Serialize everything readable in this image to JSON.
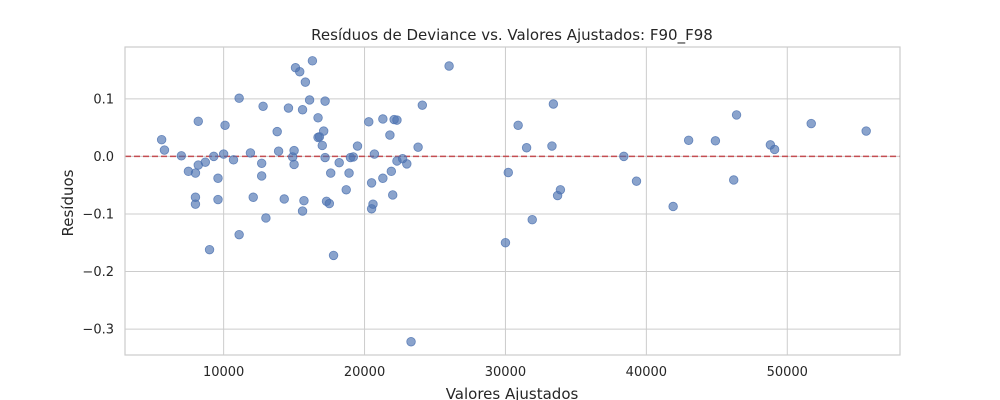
{
  "chart_data": {
    "type": "scatter",
    "title": "Resíduos de Deviance vs. Valores Ajustados: F90_F98",
    "xlabel": "Valores Ajustados",
    "ylabel": "Resíduos",
    "xlim": [
      3000,
      58000
    ],
    "ylim": [
      -0.345,
      0.19
    ],
    "xticks": [
      10000,
      20000,
      30000,
      40000,
      50000
    ],
    "xtick_labels": [
      "10000",
      "20000",
      "30000",
      "40000",
      "50000"
    ],
    "yticks": [
      -0.3,
      -0.2,
      -0.1,
      0.0,
      0.1
    ],
    "ytick_labels": [
      "−0.3",
      "−0.2",
      "−0.1",
      "0.0",
      "0.1"
    ],
    "grid": true,
    "reference_line": {
      "y": 0.0,
      "style": "dashed",
      "color": "#c44e52"
    },
    "point_color": "#4c72b0",
    "points": [
      [
        5600,
        0.029
      ],
      [
        5800,
        0.011
      ],
      [
        7000,
        0.001
      ],
      [
        7500,
        -0.026
      ],
      [
        8000,
        -0.029
      ],
      [
        8000,
        -0.071
      ],
      [
        8000,
        -0.083
      ],
      [
        8200,
        0.061
      ],
      [
        8200,
        -0.015
      ],
      [
        8700,
        -0.01
      ],
      [
        9000,
        -0.162
      ],
      [
        9300,
        0.0
      ],
      [
        9600,
        -0.038
      ],
      [
        9600,
        -0.075
      ],
      [
        10000,
        0.004
      ],
      [
        10100,
        0.054
      ],
      [
        10700,
        -0.006
      ],
      [
        11100,
        0.101
      ],
      [
        11100,
        -0.136
      ],
      [
        11900,
        0.006
      ],
      [
        12100,
        -0.071
      ],
      [
        12700,
        -0.012
      ],
      [
        12700,
        -0.034
      ],
      [
        12800,
        0.087
      ],
      [
        13000,
        -0.107
      ],
      [
        13800,
        0.043
      ],
      [
        13900,
        0.009
      ],
      [
        14300,
        -0.074
      ],
      [
        14600,
        0.084
      ],
      [
        14900,
        -0.001
      ],
      [
        15000,
        0.01
      ],
      [
        15000,
        -0.014
      ],
      [
        15100,
        0.154
      ],
      [
        15400,
        0.147
      ],
      [
        15600,
        -0.095
      ],
      [
        15600,
        0.081
      ],
      [
        15700,
        -0.077
      ],
      [
        15800,
        0.129
      ],
      [
        16100,
        0.098
      ],
      [
        16300,
        0.166
      ],
      [
        16700,
        0.033
      ],
      [
        16700,
        0.067
      ],
      [
        16800,
        0.034
      ],
      [
        17000,
        0.019
      ],
      [
        17100,
        0.044
      ],
      [
        17200,
        -0.002
      ],
      [
        17200,
        0.096
      ],
      [
        17300,
        -0.078
      ],
      [
        17500,
        -0.082
      ],
      [
        17600,
        -0.029
      ],
      [
        17800,
        -0.172
      ],
      [
        18200,
        -0.011
      ],
      [
        18700,
        -0.058
      ],
      [
        18900,
        -0.029
      ],
      [
        19000,
        -0.002
      ],
      [
        19200,
        -0.001
      ],
      [
        19500,
        0.018
      ],
      [
        20300,
        0.06
      ],
      [
        20500,
        -0.046
      ],
      [
        20500,
        -0.091
      ],
      [
        20600,
        -0.083
      ],
      [
        20700,
        0.004
      ],
      [
        21300,
        0.065
      ],
      [
        21300,
        -0.038
      ],
      [
        21800,
        0.037
      ],
      [
        21900,
        -0.026
      ],
      [
        22000,
        -0.067
      ],
      [
        22100,
        0.064
      ],
      [
        22300,
        0.063
      ],
      [
        22300,
        -0.008
      ],
      [
        22700,
        -0.004
      ],
      [
        23000,
        -0.013
      ],
      [
        23300,
        -0.322
      ],
      [
        23800,
        0.016
      ],
      [
        24100,
        0.089
      ],
      [
        26000,
        0.157
      ],
      [
        30000,
        -0.15
      ],
      [
        30200,
        -0.028
      ],
      [
        30900,
        0.054
      ],
      [
        31500,
        0.015
      ],
      [
        31900,
        -0.11
      ],
      [
        33300,
        0.018
      ],
      [
        33400,
        0.091
      ],
      [
        33700,
        -0.068
      ],
      [
        33900,
        -0.058
      ],
      [
        38400,
        0.0
      ],
      [
        39300,
        -0.043
      ],
      [
        41900,
        -0.087
      ],
      [
        43000,
        0.028
      ],
      [
        44900,
        0.027
      ],
      [
        46200,
        -0.041
      ],
      [
        46400,
        0.072
      ],
      [
        48800,
        0.02
      ],
      [
        49100,
        0.012
      ],
      [
        51700,
        0.057
      ],
      [
        55600,
        0.044
      ]
    ]
  }
}
